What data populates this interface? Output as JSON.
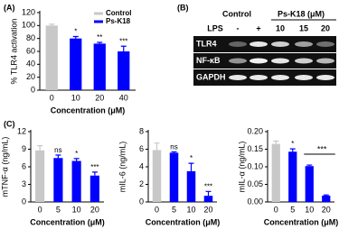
{
  "chart_data": [
    {
      "type": "bar",
      "panel": "(A)",
      "ylabel": "% TLR4 activation",
      "xlabel": "Concentration (μM)",
      "categories": [
        "0",
        "10",
        "20",
        "40"
      ],
      "series": [
        {
          "name": "Control",
          "color": "#c8c8c8",
          "values": [
            100,
            null,
            null,
            null
          ],
          "errors": [
            2,
            null,
            null,
            null
          ]
        },
        {
          "name": "Ps-K18",
          "color": "#0000ff",
          "values": [
            null,
            80,
            72,
            60
          ],
          "errors": [
            null,
            3,
            2,
            8
          ]
        }
      ],
      "significance": [
        null,
        "*",
        "**",
        "***"
      ],
      "ylim": [
        0,
        120
      ],
      "yticks": [
        0,
        20,
        40,
        60,
        80,
        100,
        120
      ],
      "legend": "top-right"
    },
    {
      "type": "bar",
      "panel": "(C)",
      "ylabel": "mTNF-α (ng/mL)",
      "xlabel": "Concentration (μM)",
      "categories": [
        "0",
        "5",
        "10",
        "20"
      ],
      "values": [
        8.8,
        7.5,
        7.0,
        4.5
      ],
      "errors": [
        0.8,
        0.5,
        0.4,
        0.6
      ],
      "colors": [
        "#c8c8c8",
        "#0000ff",
        "#0000ff",
        "#0000ff"
      ],
      "significance": [
        null,
        "ns",
        "*",
        "***"
      ],
      "ylim": [
        0,
        12
      ],
      "yticks": [
        0,
        3,
        6,
        9,
        12
      ]
    },
    {
      "type": "bar",
      "ylabel": "mIL-6 (ng/mL)",
      "xlabel": "Concentration (μM)",
      "categories": [
        "0",
        "5",
        "10",
        "20"
      ],
      "values": [
        5.9,
        5.6,
        3.5,
        0.7
      ],
      "errors": [
        0.8,
        0.1,
        0.9,
        0.5
      ],
      "colors": [
        "#c8c8c8",
        "#0000ff",
        "#0000ff",
        "#0000ff"
      ],
      "significance": [
        null,
        "ns",
        "*",
        "***"
      ],
      "ylim": [
        0,
        8
      ],
      "yticks": [
        0,
        2,
        4,
        6,
        8
      ]
    },
    {
      "type": "bar",
      "ylabel": "mIL-α (ng/mL)",
      "xlabel": "Concentration (μM)",
      "categories": [
        "0",
        "5",
        "10",
        "20"
      ],
      "values": [
        0.165,
        0.143,
        0.102,
        0.018
      ],
      "errors": [
        0.008,
        0.008,
        0.003,
        0.002
      ],
      "colors": [
        "#c8c8c8",
        "#0000ff",
        "#0000ff",
        "#0000ff"
      ],
      "significance": [
        null,
        "*",
        null,
        "***"
      ],
      "significance_bracket": true,
      "ylim": [
        0,
        0.2
      ],
      "yticks": [
        {
          "value": 0,
          "label": "0.00"
        },
        {
          "value": 0.05,
          "label": "0.05"
        },
        {
          "value": 0.1,
          "label": "0.10"
        },
        {
          "value": 0.15,
          "label": "0.15"
        },
        {
          "value": 0.2,
          "label": "0.20"
        }
      ]
    }
  ],
  "gel": {
    "panel": "(B)",
    "control_label": "Control",
    "treatment_label": "Ps-K18 (μM)",
    "lps_label": "LPS",
    "lanes": [
      "-",
      "+",
      "10",
      "15",
      "20"
    ],
    "rows": [
      "TLR4",
      "NF-κB",
      "GAPDH"
    ]
  }
}
